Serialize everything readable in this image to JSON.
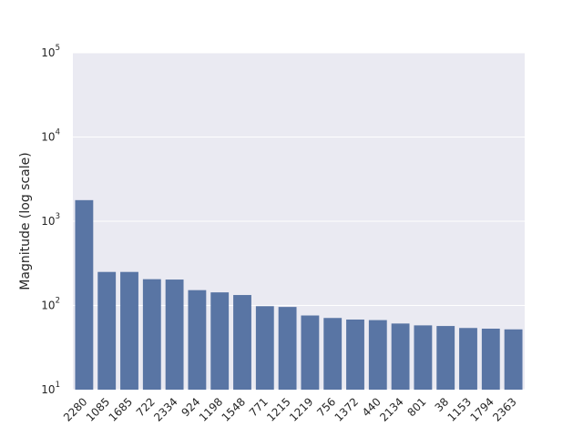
{
  "chart_data": {
    "type": "bar",
    "title": "",
    "xlabel": "",
    "ylabel": "Magnitude (log scale)",
    "yscale": "log",
    "ylim": [
      10,
      100000
    ],
    "grid": true,
    "colors": {
      "bar": "#5975a4",
      "plot_background": "#eaeaf2",
      "grid": "#ffffff",
      "text": "#262626"
    },
    "categories": [
      "2280",
      "1085",
      "1685",
      "722",
      "2334",
      "924",
      "1198",
      "1548",
      "771",
      "1215",
      "1219",
      "756",
      "1372",
      "440",
      "2134",
      "801",
      "38",
      "1153",
      "1794",
      "2363"
    ],
    "values": [
      1780,
      250,
      250,
      205,
      203,
      152,
      143,
      133,
      98,
      96,
      76,
      71,
      68,
      67,
      61,
      58,
      57,
      54,
      53,
      52
    ],
    "yticks": [
      {
        "value": 10,
        "base": "10",
        "exp": "1"
      },
      {
        "value": 100,
        "base": "10",
        "exp": "2"
      },
      {
        "value": 1000,
        "base": "10",
        "exp": "3"
      },
      {
        "value": 10000,
        "base": "10",
        "exp": "4"
      },
      {
        "value": 100000,
        "base": "10",
        "exp": "5"
      }
    ]
  }
}
